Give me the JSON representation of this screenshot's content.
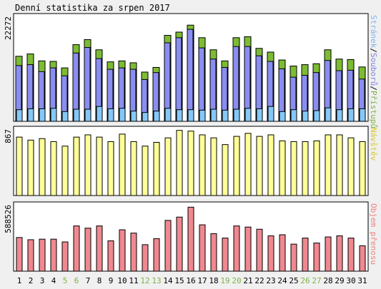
{
  "chart_data": {
    "type": "bar",
    "title": "Denní statistika za srpen 2017",
    "categories": [
      "1",
      "2",
      "3",
      "4",
      "5",
      "6",
      "7",
      "8",
      "9",
      "10",
      "11",
      "12",
      "13",
      "14",
      "15",
      "16",
      "17",
      "18",
      "19",
      "20",
      "21",
      "22",
      "23",
      "24",
      "25",
      "26",
      "27",
      "28",
      "29",
      "30",
      "31"
    ],
    "weekend_days": [
      "5",
      "6",
      "12",
      "13",
      "19",
      "20",
      "26",
      "27"
    ],
    "grid": false,
    "legend": "right-vertical",
    "panels": [
      {
        "id": "hits",
        "ymax_label": "22272",
        "ymax": 22272,
        "legend": [
          {
            "text": "Stránek",
            "color": "#7fb2ee"
          },
          {
            "text": "/",
            "color": "#000000"
          },
          {
            "text": "Souborů",
            "color": "#8080e0"
          },
          {
            "text": "/",
            "color": "#000000"
          },
          {
            "text": "Přístupů",
            "color": "#7cb342"
          }
        ],
        "series": [
          {
            "name": "Přístupů",
            "color": "#7cbc34",
            "values": [
              14000,
              14500,
              13000,
              12900,
              11500,
              16500,
              17600,
              15400,
              12800,
              13000,
              12600,
              10600,
              11600,
              18500,
              19200,
              20700,
              18000,
              15400,
              13000,
              18000,
              18200,
              15700,
              14900,
              13200,
              11900,
              12200,
              12400,
              15400,
              13400,
              13300,
              11700
            ]
          },
          {
            "name": "Souborů",
            "color": "#8a8ef0",
            "values": [
              12000,
              12200,
              10700,
              11500,
              9800,
              14700,
              15900,
              13500,
              11200,
              11500,
              11200,
              9000,
              10500,
              16900,
              18000,
              19800,
              15800,
              13400,
              11600,
              16100,
              16100,
              14100,
              12900,
              11300,
              9500,
              9900,
              10500,
              13100,
              10900,
              11000,
              9100
            ]
          },
          {
            "name": "Stránek",
            "color": "#84c8f8",
            "values": [
              2500,
              2700,
              2700,
              2800,
              2100,
              2600,
              2600,
              3200,
              2700,
              2800,
              2200,
              1900,
              2200,
              2800,
              2500,
              2500,
              2400,
              2600,
              2400,
              2600,
              2800,
              2700,
              3200,
              2100,
              2500,
              2200,
              2300,
              2900,
              2500,
              2700,
              2700
            ]
          }
        ]
      },
      {
        "id": "visits",
        "ymax_label": "867",
        "ymax": 867,
        "legend": [
          {
            "text": "Návštěv",
            "color": "#d8c820"
          }
        ],
        "series": [
          {
            "name": "Návštěv",
            "color": "#ffff99",
            "values": [
              780,
              740,
              760,
              720,
              660,
              780,
              810,
              780,
              720,
              820,
              720,
              660,
              710,
              770,
              870,
              860,
              810,
              770,
              680,
              790,
              830,
              790,
              810,
              730,
              720,
              720,
              730,
              810,
              810,
              770,
              720
            ]
          }
        ]
      },
      {
        "id": "volume",
        "ymax_label": "588526",
        "ymax": 588526,
        "legend": [
          {
            "text": "Objem přenosu",
            "color": "#f08080"
          }
        ],
        "series": [
          {
            "name": "Objem přenosu",
            "color": "#f08890",
            "values": [
              305000,
              285000,
              290000,
              290000,
              265000,
              410000,
              390000,
              410000,
              275000,
              375000,
              345000,
              240000,
              295000,
              460000,
              490000,
              580000,
              420000,
              340000,
              300000,
              410000,
              400000,
              380000,
              320000,
              330000,
              245000,
              300000,
              255000,
              310000,
              320000,
              300000,
              230000
            ]
          }
        ]
      }
    ]
  }
}
